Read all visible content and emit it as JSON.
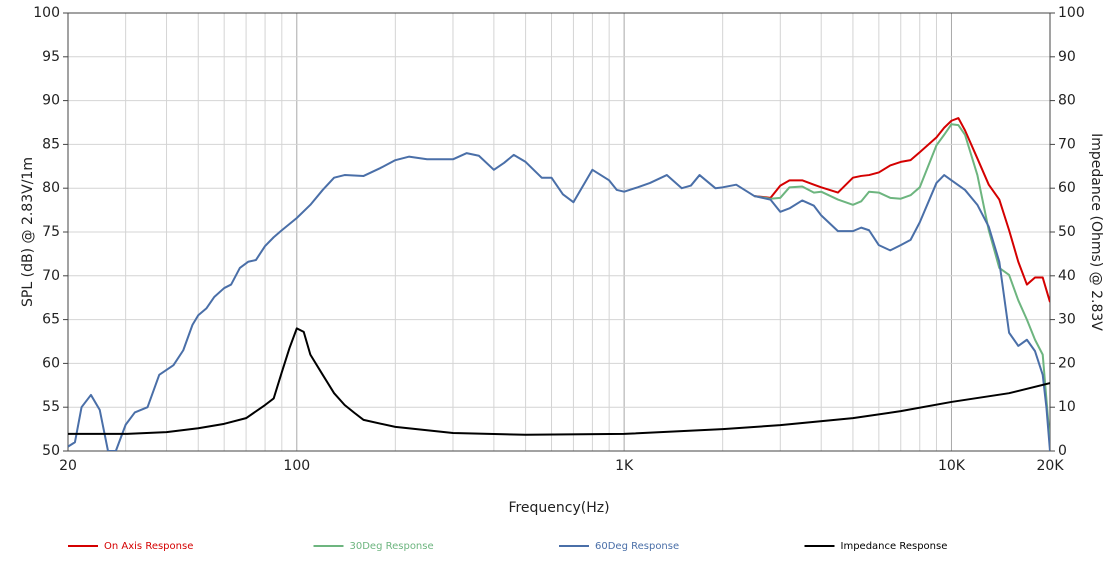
{
  "chart_data": {
    "type": "line",
    "xlabel": "Frequency(Hz)",
    "ylabel": "SPL (dB) @ 2.83V/1m",
    "y2label": "Impedance (Ohms) @ 2.83V",
    "xscale": "log",
    "xlim": [
      20,
      20000
    ],
    "xticks": [
      20,
      100,
      {
        "value": 1000,
        "label": "1K"
      },
      {
        "value": 10000,
        "label": "10K"
      },
      {
        "value": 20000,
        "label": "20K"
      }
    ],
    "xminor": [
      30,
      40,
      50,
      60,
      70,
      80,
      90,
      200,
      300,
      400,
      500,
      600,
      700,
      800,
      900,
      2000,
      3000,
      4000,
      5000,
      6000,
      7000,
      8000,
      9000
    ],
    "ylim": [
      50,
      100
    ],
    "yticks": [
      50,
      55,
      60,
      65,
      70,
      75,
      80,
      85,
      90,
      95,
      100
    ],
    "y2lim": [
      0,
      100
    ],
    "y2ticks": [
      0,
      10,
      20,
      30,
      40,
      50,
      60,
      70,
      80,
      90,
      100
    ],
    "grid": true,
    "legend": "bottom",
    "series": [
      {
        "name": "On Axis Response",
        "color": "#d40000",
        "x": [
          2500,
          2800,
          3000,
          3200,
          3500,
          3800,
          4000,
          4500,
          5000,
          5300,
          5600,
          6000,
          6500,
          7000,
          7500,
          8000,
          9000,
          9500,
          10000,
          10500,
          11000,
          12000,
          13000,
          14000,
          15000,
          16000,
          17000,
          18000,
          19000,
          20000
        ],
        "values": [
          79.1,
          78.9,
          80.3,
          80.9,
          80.9,
          80.4,
          80.1,
          79.5,
          81.2,
          81.4,
          81.5,
          81.8,
          82.6,
          83,
          83.2,
          84.1,
          85.8,
          86.9,
          87.7,
          88,
          86.6,
          83.4,
          80.4,
          78.7,
          75.2,
          71.6,
          69,
          69.8,
          69.8,
          67
        ]
      },
      {
        "name": "30Deg Response",
        "color": "#6db57f",
        "x": [
          2500,
          2800,
          3000,
          3200,
          3500,
          3800,
          4000,
          4500,
          5000,
          5300,
          5600,
          6000,
          6500,
          7000,
          7500,
          8000,
          9000,
          9500,
          10000,
          10500,
          11000,
          12000,
          13000,
          14000,
          15000,
          16000,
          17000,
          18000,
          19000,
          20000
        ],
        "values": [
          79.1,
          78.8,
          78.9,
          80.1,
          80.2,
          79.5,
          79.6,
          78.7,
          78.1,
          78.5,
          79.6,
          79.5,
          78.9,
          78.8,
          79.2,
          80.1,
          84.9,
          86.1,
          87.3,
          87.2,
          86.1,
          81.5,
          75.2,
          70.9,
          70.1,
          67.2,
          65,
          62.7,
          61,
          51
        ]
      },
      {
        "name": "60Deg Response",
        "color": "#4a6fa8",
        "x": [
          20,
          21,
          22,
          23.5,
          25,
          26.5,
          28,
          30,
          32,
          35,
          38,
          42,
          45,
          48,
          50,
          53,
          56,
          60,
          63,
          67,
          71,
          75,
          80,
          85,
          90,
          100,
          110,
          120,
          130,
          140,
          160,
          180,
          200,
          220,
          250,
          300,
          330,
          360,
          400,
          430,
          460,
          500,
          560,
          600,
          650,
          700,
          800,
          900,
          950,
          1000,
          1100,
          1200,
          1350,
          1500,
          1600,
          1700,
          1900,
          2000,
          2200,
          2500,
          2800,
          3000,
          3200,
          3500,
          3800,
          4000,
          4500,
          5000,
          5300,
          5600,
          6000,
          6500,
          7000,
          7500,
          8000,
          9000,
          9500,
          10000,
          11000,
          12000,
          13000,
          14000,
          15000,
          16000,
          17000,
          18000,
          19000,
          19500,
          20000
        ],
        "values": [
          50.5,
          51,
          55,
          56.4,
          54.7,
          50,
          50,
          53,
          54.4,
          55,
          58.7,
          59.8,
          61.5,
          64.4,
          65.5,
          66.3,
          67.6,
          68.6,
          69,
          70.9,
          71.6,
          71.8,
          73.4,
          74.4,
          75.2,
          76.6,
          78.1,
          79.8,
          81.2,
          81.5,
          81.4,
          82.3,
          83.2,
          83.6,
          83.3,
          83.3,
          84,
          83.7,
          82.1,
          82.9,
          83.8,
          83,
          81.2,
          81.2,
          79.3,
          78.4,
          82.1,
          80.9,
          79.8,
          79.6,
          80.1,
          80.6,
          81.5,
          80,
          80.3,
          81.5,
          80,
          80.1,
          80.4,
          79.1,
          78.7,
          77.3,
          77.7,
          78.6,
          78,
          76.9,
          75.1,
          75.1,
          75.5,
          75.2,
          73.5,
          72.9,
          73.5,
          74.1,
          76.1,
          80.6,
          81.5,
          80.9,
          79.8,
          78.1,
          75.6,
          71.6,
          63.5,
          62,
          62.7,
          61.4,
          58.7,
          55,
          50
        ]
      },
      {
        "name": "Impedance Response",
        "color": "#000000",
        "axis": "y2",
        "x": [
          20,
          30,
          40,
          50,
          60,
          70,
          80,
          85,
          90,
          95,
          100,
          105,
          110,
          120,
          130,
          140,
          150,
          160,
          200,
          300,
          500,
          1000,
          2000,
          3000,
          5000,
          7000,
          10000,
          15000,
          20000
        ],
        "values": [
          3.9,
          3.9,
          4.3,
          5.2,
          6.2,
          7.5,
          10.5,
          12,
          18,
          23.5,
          28,
          27.2,
          22,
          17.4,
          13.2,
          10.5,
          8.7,
          7.1,
          5.5,
          4.1,
          3.7,
          3.9,
          5,
          5.9,
          7.5,
          9.1,
          11.2,
          13.2,
          15.5
        ]
      }
    ]
  }
}
